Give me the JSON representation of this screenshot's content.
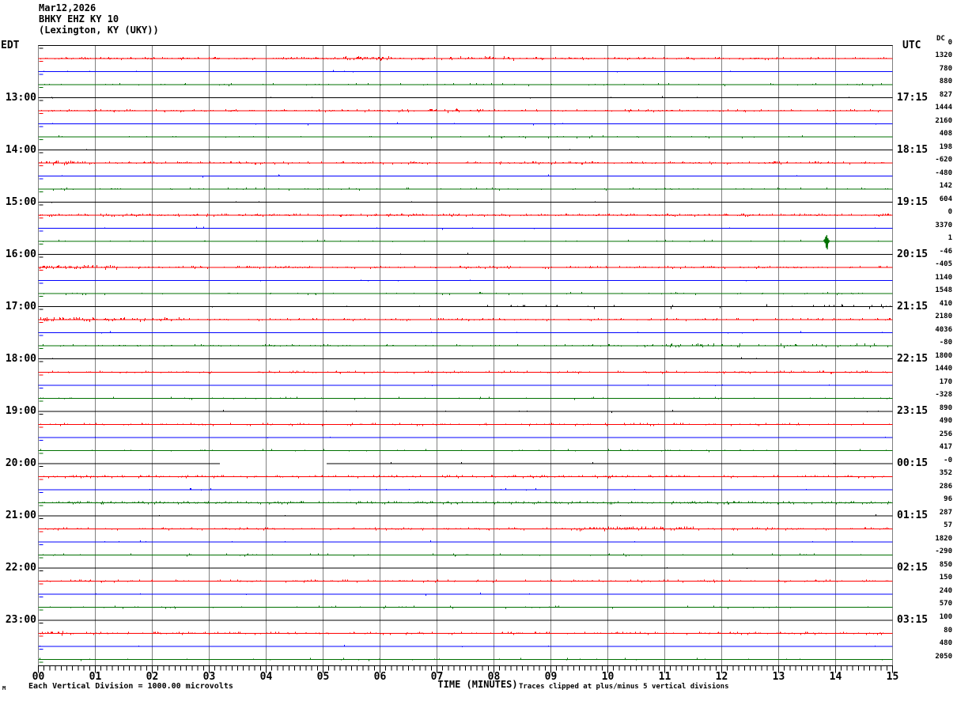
{
  "header": {
    "date_line": "Mar12,2026",
    "station_line": "BHKY EHZ KY 10",
    "location_line": "(Lexington, KY (UKY))"
  },
  "axes": {
    "left_timezone": "EDT",
    "right_timezone": "UTC",
    "dc_header": "DC",
    "x_axis_label": "TIME (MINUTES)",
    "minute_labels": [
      "00",
      "01",
      "02",
      "03",
      "04",
      "05",
      "06",
      "07",
      "08",
      "09",
      "10",
      "11",
      "12",
      "13",
      "14",
      "15"
    ]
  },
  "footer": {
    "scale_note": "Each Vertical Division = 1000.00 microvolts",
    "clip_note": "Traces clipped at plus/minus 5 vertical divisions",
    "watermark": "M"
  },
  "colors": {
    "red": "#ff0000",
    "blue": "#0000ff",
    "green": "#007000",
    "black": "#000000",
    "grid": "#808080"
  },
  "chart_data": {
    "type": "line",
    "subtype": "helicorder-seismogram",
    "title": "BHKY EHZ KY 10 (Lexington, KY (UKY)) Mar12,2026",
    "xlabel": "TIME (MINUTES)",
    "x_range_minutes": [
      0,
      15
    ],
    "x_major_tick_minutes": 1,
    "x_minor_ticks_per_minute": 10,
    "row_duration_minutes": 15,
    "vertical_division_microvolts": "1000.00",
    "clip_divisions": 5,
    "rows": [
      {
        "color": "black",
        "dc": "0",
        "act": 0.0
      },
      {
        "color": "red",
        "dc": "1320",
        "act": 0.26,
        "bursts": [
          [
            5.2,
            6.2,
            0.45
          ],
          [
            7.4,
            8.4,
            0.4
          ]
        ]
      },
      {
        "color": "blue",
        "dc": "780",
        "act": 0.006
      },
      {
        "color": "green",
        "dc": "880",
        "act": 0.05
      },
      {
        "color": "black",
        "dc": "827",
        "edt": "13:00",
        "utc": "17:15",
        "act": 0.003
      },
      {
        "color": "red",
        "dc": "1444",
        "act": 0.18,
        "bursts": [
          [
            6.8,
            7.8,
            0.35
          ]
        ]
      },
      {
        "color": "blue",
        "dc": "2160",
        "act": 0.006
      },
      {
        "color": "green",
        "dc": "408",
        "act": 0.05
      },
      {
        "color": "black",
        "dc": "198",
        "edt": "14:00",
        "utc": "18:15",
        "act": 0.003
      },
      {
        "color": "red",
        "dc": "-620",
        "act": 0.2,
        "bursts": [
          [
            0,
            0.8,
            0.4
          ]
        ]
      },
      {
        "color": "blue",
        "dc": "-480",
        "act": 0.006
      },
      {
        "color": "green",
        "dc": "142",
        "act": 0.08
      },
      {
        "color": "black",
        "dc": "604",
        "edt": "15:00",
        "utc": "19:15",
        "act": 0.003
      },
      {
        "color": "red",
        "dc": "0",
        "act": 0.3
      },
      {
        "color": "blue",
        "dc": "3370",
        "act": 0.006
      },
      {
        "color": "green",
        "dc": "1",
        "act": 0.035,
        "events": {
          "spike": 13.83
        }
      },
      {
        "color": "black",
        "dc": "-46",
        "edt": "16:00",
        "utc": "20:15",
        "act": 0.003
      },
      {
        "color": "red",
        "dc": "-405",
        "act": 0.2,
        "bursts": [
          [
            0,
            1.4,
            0.4
          ]
        ]
      },
      {
        "color": "blue",
        "dc": "1140",
        "act": 0.008
      },
      {
        "color": "green",
        "dc": "1548",
        "act": 0.05
      },
      {
        "color": "black",
        "dc": "410",
        "edt": "17:00",
        "utc": "21:15",
        "act": 0.004,
        "bursts": [
          [
            6.5,
            14.9,
            0.05
          ]
        ]
      },
      {
        "color": "red",
        "dc": "2180",
        "act": 0.18,
        "bursts": [
          [
            0,
            2.5,
            0.42
          ]
        ]
      },
      {
        "color": "blue",
        "dc": "4036",
        "act": 0.008
      },
      {
        "color": "green",
        "dc": "-80",
        "act": 0.1,
        "bursts": [
          [
            9,
            14.9,
            0.16
          ]
        ]
      },
      {
        "color": "black",
        "dc": "1800",
        "edt": "18:00",
        "utc": "22:15",
        "act": 0.003
      },
      {
        "color": "red",
        "dc": "1440",
        "act": 0.15
      },
      {
        "color": "blue",
        "dc": "170",
        "act": 0.005
      },
      {
        "color": "green",
        "dc": "-328",
        "act": 0.04
      },
      {
        "color": "black",
        "dc": "890",
        "edt": "19:00",
        "utc": "23:15",
        "act": 0.003
      },
      {
        "color": "red",
        "dc": "490",
        "act": 0.13
      },
      {
        "color": "blue",
        "dc": "256",
        "act": 0.005
      },
      {
        "color": "green",
        "dc": "417",
        "act": 0.05
      },
      {
        "color": "black",
        "dc": "-0",
        "edt": "20:00",
        "utc": "00:15",
        "act": 0.002,
        "events": {
          "gap": [
            3.19,
            5.06
          ]
        }
      },
      {
        "color": "red",
        "dc": "352",
        "act": 0.2
      },
      {
        "color": "blue",
        "dc": "286",
        "act": 0.01
      },
      {
        "color": "green",
        "dc": "96",
        "act": 0.3
      },
      {
        "color": "black",
        "dc": "287",
        "edt": "21:00",
        "utc": "01:15",
        "act": 0.003
      },
      {
        "color": "red",
        "dc": "57",
        "act": 0.16,
        "bursts": [
          [
            9.4,
            11.6,
            0.45
          ]
        ]
      },
      {
        "color": "blue",
        "dc": "1820",
        "act": 0.008
      },
      {
        "color": "green",
        "dc": "-290",
        "act": 0.05
      },
      {
        "color": "black",
        "dc": "850",
        "edt": "22:00",
        "utc": "02:15",
        "act": 0.003
      },
      {
        "color": "red",
        "dc": "150",
        "act": 0.14
      },
      {
        "color": "blue",
        "dc": "240",
        "act": 0.005
      },
      {
        "color": "green",
        "dc": "570",
        "act": 0.05
      },
      {
        "color": "black",
        "dc": "100",
        "edt": "23:00",
        "utc": "03:15",
        "act": 0.003
      },
      {
        "color": "red",
        "dc": "80",
        "act": 0.15,
        "bursts": [
          [
            0,
            0.5,
            0.45
          ]
        ]
      },
      {
        "color": "blue",
        "dc": "480",
        "act": 0.006
      },
      {
        "color": "green",
        "dc": "2050",
        "act": 0.03
      }
    ]
  }
}
